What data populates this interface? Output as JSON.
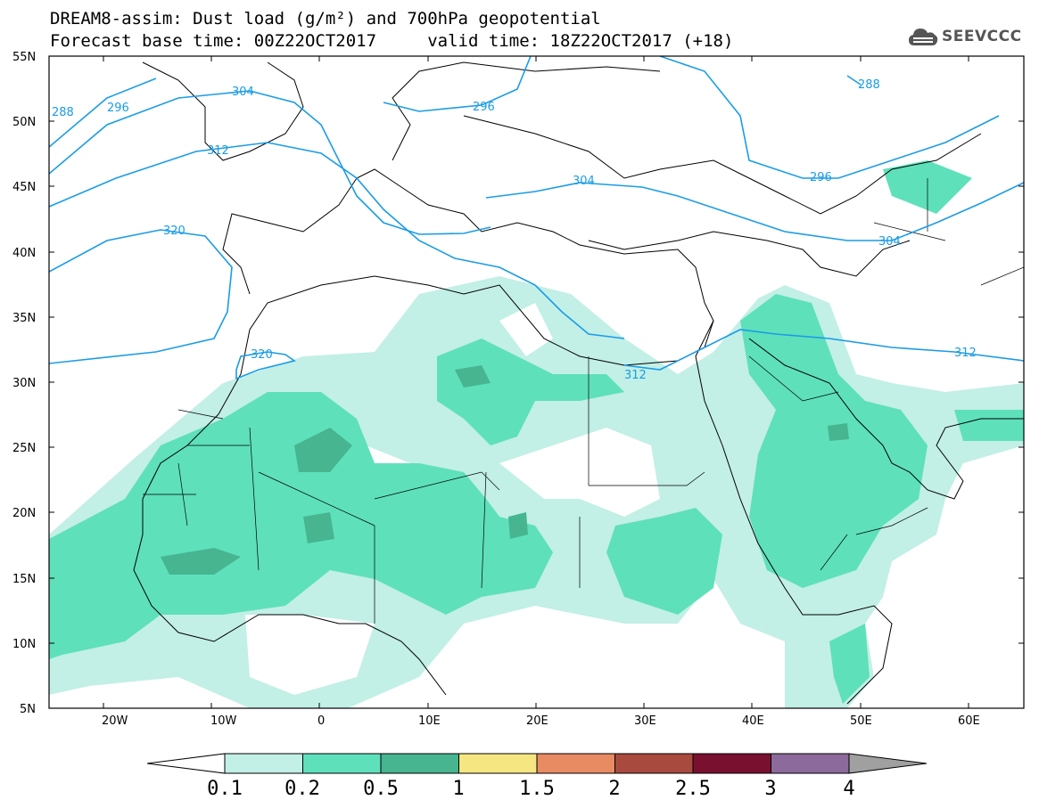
{
  "title": {
    "line1": "DREAM8-assim: Dust load (g/m²) and 700hPa geopotential",
    "line2": "Forecast base time: 00Z22OCT2017     valid time: 18Z22OCT2017 (+18)"
  },
  "logo": {
    "text": "SEEVCCC",
    "icon": "cloud-icon"
  },
  "axes": {
    "lat_labels": [
      "55N",
      "50N",
      "45N",
      "40N",
      "35N",
      "30N",
      "25N",
      "20N",
      "15N",
      "10N",
      "5N"
    ],
    "lon_labels": [
      "20W",
      "10W",
      "0",
      "10E",
      "20E",
      "30E",
      "40E",
      "50E",
      "60E"
    ],
    "lon_range": [
      -25,
      65
    ],
    "lat_range": [
      5,
      55
    ]
  },
  "contour_labels": [
    "288",
    "296",
    "304",
    "296",
    "312",
    "320",
    "320",
    "304",
    "296",
    "304",
    "288",
    "312",
    "312"
  ],
  "colorbar": {
    "labels": [
      "0.1",
      "0.2",
      "0.5",
      "1",
      "1.5",
      "2",
      "2.5",
      "3",
      "4"
    ],
    "colors": [
      "#c2efe6",
      "#5ee0bb",
      "#46b590",
      "#f5e681",
      "#e88a62",
      "#a84a3d",
      "#7a1030",
      "#8c6a9b"
    ],
    "under_color": "#ffffff",
    "over_color": "#a0a0a0"
  },
  "colors": {
    "contour": "#1a9ce6",
    "dust_low": "#c2efe6",
    "dust_mid": "#5ee0bb",
    "dust_high": "#46b590"
  }
}
